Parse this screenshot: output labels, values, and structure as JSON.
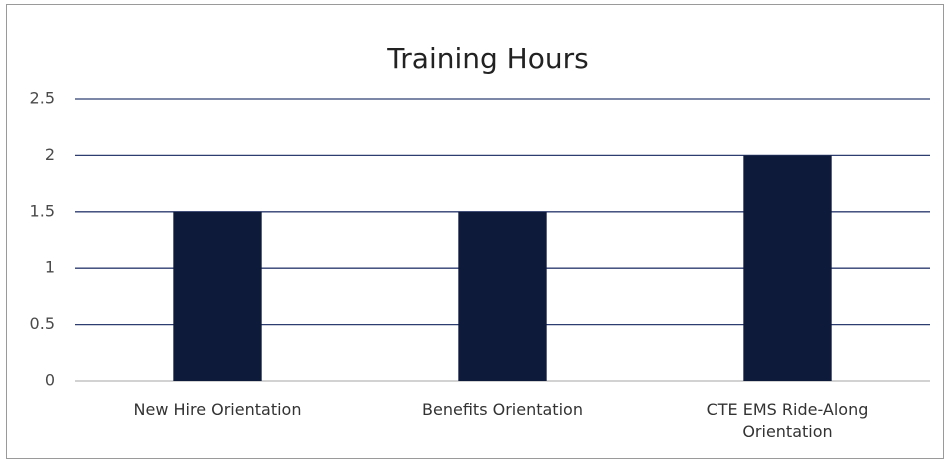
{
  "chart_data": {
    "type": "bar",
    "title": "Training Hours",
    "categories": [
      "New Hire Orientation",
      "Benefits Orientation",
      "CTE EMS Ride-Along Orientation"
    ],
    "values": [
      1.5,
      1.5,
      2
    ],
    "color": "#0d1a3a",
    "ylim": [
      0,
      2.5
    ],
    "yticks": [
      0,
      0.5,
      1,
      1.5,
      2,
      2.5
    ],
    "grid": true
  }
}
